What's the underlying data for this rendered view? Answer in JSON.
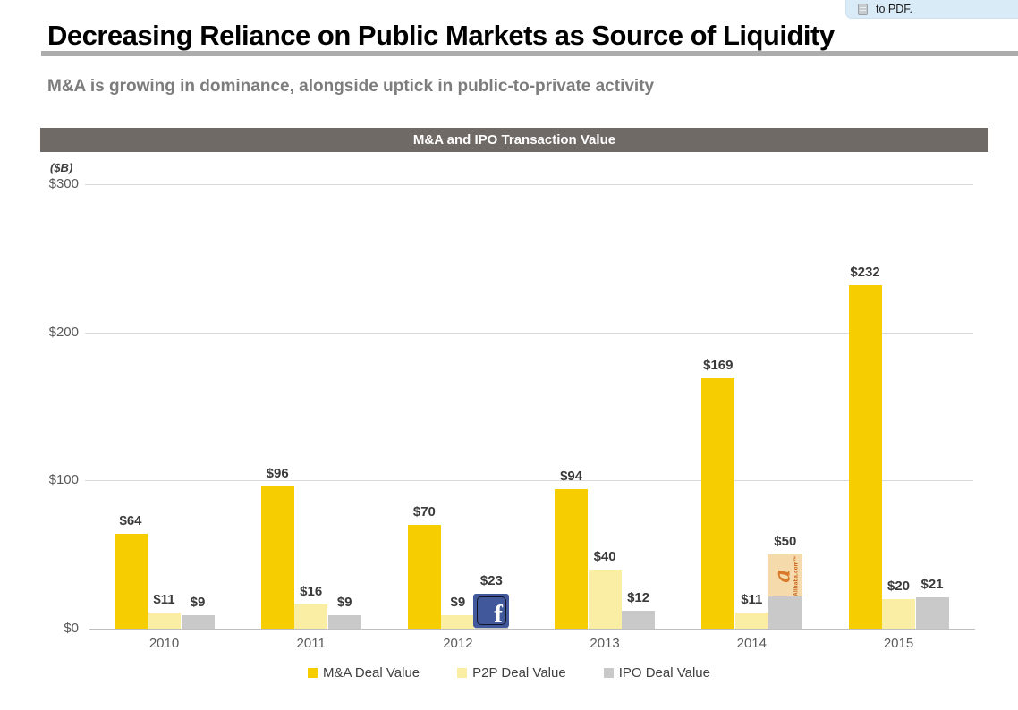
{
  "tooltip": {
    "text": "to PDF."
  },
  "page": {
    "title": "Decreasing Reliance on Public Markets as Source of Liquidity",
    "subtitle": "M&A is growing in dominance, alongside uptick in public-to-private activity"
  },
  "colors": {
    "ma_gold": "#F5CD00",
    "p2p_pale_yellow": "#FAEDA4",
    "ipo_gray": "#C9C9C9",
    "header_bar": "#6F6A66",
    "facebook_blue": "#41599B",
    "alibaba_tan": "#F5DBAB",
    "alibaba_orange": "#D97A2B"
  },
  "chart_data": {
    "type": "bar",
    "title": "M&A and IPO Transaction Value",
    "unit_label": "($B)",
    "categories": [
      "2010",
      "2011",
      "2012",
      "2013",
      "2014",
      "2015"
    ],
    "series": [
      {
        "key": "ma",
        "name": "M&A Deal Value",
        "color": "#F5CD00",
        "values": [
          64,
          96,
          70,
          94,
          169,
          232
        ]
      },
      {
        "key": "p2p",
        "name": "P2P Deal Value",
        "color": "#FAEDA4",
        "values": [
          11,
          16,
          9,
          40,
          11,
          20
        ]
      },
      {
        "key": "ipo",
        "name": "IPO Deal Value",
        "color": "#C9C9C9",
        "values": [
          9,
          9,
          23,
          12,
          50,
          21
        ]
      }
    ],
    "ylim": [
      0,
      300
    ],
    "y_ticks": [
      {
        "value": 0,
        "label": "$0"
      },
      {
        "value": 100,
        "label": "$100"
      },
      {
        "value": 200,
        "label": "$200"
      },
      {
        "value": 300,
        "label": "$300"
      }
    ],
    "grid": "horizontal",
    "legend_position": "bottom",
    "data_label_prefix": "$",
    "logo_overlays": [
      {
        "category": "2012",
        "series_key": "ipo",
        "logo": "facebook",
        "glyph": "f"
      },
      {
        "category": "2014",
        "series_key": "ipo",
        "logo": "alibaba",
        "glyph": "a",
        "label": "Alibaba.com™"
      }
    ]
  }
}
